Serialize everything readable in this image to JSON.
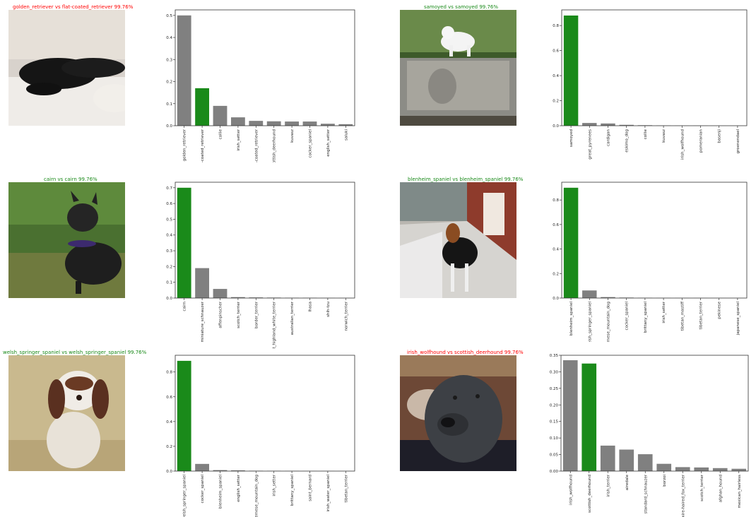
{
  "colors": {
    "correct": "#1a8a1a",
    "wrong": "#ff0000",
    "bar_default": "#808080",
    "bar_true": "#1a8a1a"
  },
  "panels": [
    {
      "title": "golden_retriever vs flat-coated_retriever 99.76%",
      "title_color": "#ff0000",
      "photo_icon": "black-dog-photo"
    },
    {
      "title": "samoyed vs samoyed 99.76%",
      "title_color": "#1a8a1a",
      "photo_icon": "white-dog-photo"
    },
    {
      "title": "cairn vs cairn 99.76%",
      "title_color": "#1a8a1a",
      "photo_icon": "terrier-photo"
    },
    {
      "title": "blenheim_spaniel vs blenheim_spaniel 99.76%",
      "title_color": "#1a8a1a",
      "photo_icon": "spaniel-photo"
    },
    {
      "title": "welsh_springer_spaniel vs welsh_springer_spaniel 99.76%",
      "title_color": "#1a8a1a",
      "photo_icon": "springer-photo"
    },
    {
      "title": "irish_wolfhound vs scottish_deerhound 99.76%",
      "title_color": "#ff0000",
      "photo_icon": "wolfhound-photo"
    }
  ],
  "chart_data": [
    {
      "type": "bar",
      "categories": [
        "golden_retriever",
        "flat-coated_retriever",
        "collie",
        "irish_setter",
        "curly-coated_retriever",
        "scottish_deerhound",
        "kuvasz",
        "cocker_spaniel",
        "english_setter",
        "saluki"
      ],
      "values": [
        0.5,
        0.17,
        0.09,
        0.038,
        0.022,
        0.02,
        0.019,
        0.019,
        0.009,
        0.007
      ],
      "highlight_index": 1,
      "yticks": [
        "0.0",
        "0.1",
        "0.2",
        "0.3",
        "0.4",
        "0.5"
      ],
      "ylim": [
        0,
        0.525
      ]
    },
    {
      "type": "bar",
      "categories": [
        "samoyed",
        "great_pyrenees",
        "cardigan",
        "eskimo_dog",
        "collie",
        "kuvasz",
        "irish_wolfhound",
        "pomeranian",
        "basenji",
        "groenendael"
      ],
      "values": [
        0.88,
        0.022,
        0.018,
        0.007,
        0.004,
        0.002,
        0.001,
        0.001,
        0.0005,
        0.0005
      ],
      "highlight_index": 0,
      "yticks": [
        "0.0",
        "0.2",
        "0.4",
        "0.6",
        "0.8"
      ],
      "ylim": [
        0,
        0.925
      ]
    },
    {
      "type": "bar",
      "categories": [
        "cairn",
        "miniature_schnauzer",
        "affenpinscher",
        "scotch_terrier",
        "border_terrier",
        "west_highland_white_terrier",
        "australian_terrier",
        "lhasa",
        "shih-tzu",
        "norwich_terrier"
      ],
      "values": [
        0.7,
        0.19,
        0.058,
        0.006,
        0.004,
        0.003,
        0.002,
        0.002,
        0.001,
        0.0005
      ],
      "highlight_index": 0,
      "yticks": [
        "0.0",
        "0.1",
        "0.2",
        "0.3",
        "0.4",
        "0.5",
        "0.6",
        "0.7"
      ],
      "ylim": [
        0,
        0.735
      ]
    },
    {
      "type": "bar",
      "categories": [
        "blenheim_spaniel",
        "welsh_springer_spaniel",
        "bernese_mountain_dog",
        "cocker_spaniel",
        "brittany_spaniel",
        "irish_setter",
        "tibetan_mastiff",
        "tibetan_terrier",
        "pekinese",
        "japanese_spaniel"
      ],
      "values": [
        0.9,
        0.062,
        0.008,
        0.004,
        0.002,
        0.001,
        0.0008,
        0.0006,
        0.0005,
        0.0004
      ],
      "highlight_index": 0,
      "yticks": [
        "0.0",
        "0.2",
        "0.4",
        "0.6",
        "0.8"
      ],
      "ylim": [
        0,
        0.945
      ]
    },
    {
      "type": "bar",
      "categories": [
        "welsh_springer_spaniel",
        "cocker_spaniel",
        "blenheim_spaniel",
        "english_setter",
        "bernese_mountain_dog",
        "irish_setter",
        "brittany_spaniel",
        "saint_bernard",
        "irish_water_spaniel",
        "tibetan_terrier"
      ],
      "values": [
        0.89,
        0.058,
        0.008,
        0.006,
        0.003,
        0.002,
        0.001,
        0.0008,
        0.0006,
        0.0004
      ],
      "highlight_index": 0,
      "yticks": [
        "0.0",
        "0.2",
        "0.4",
        "0.6",
        "0.8"
      ],
      "ylim": [
        0,
        0.935
      ]
    },
    {
      "type": "bar",
      "categories": [
        "irish_wolfhound",
        "scottish_deerhound",
        "irish_terrier",
        "airedale",
        "standard_schnauzer",
        "borzoi",
        "wire-haired_fox_terrier",
        "scotch_terrier",
        "afghan_hound",
        "mexican_hairless"
      ],
      "values": [
        0.335,
        0.325,
        0.077,
        0.065,
        0.051,
        0.022,
        0.012,
        0.011,
        0.009,
        0.007
      ],
      "highlight_index": 1,
      "yticks": [
        "0.00",
        "0.05",
        "0.10",
        "0.15",
        "0.20",
        "0.25",
        "0.30",
        "0.35"
      ],
      "ylim": [
        0,
        0.35
      ]
    }
  ]
}
